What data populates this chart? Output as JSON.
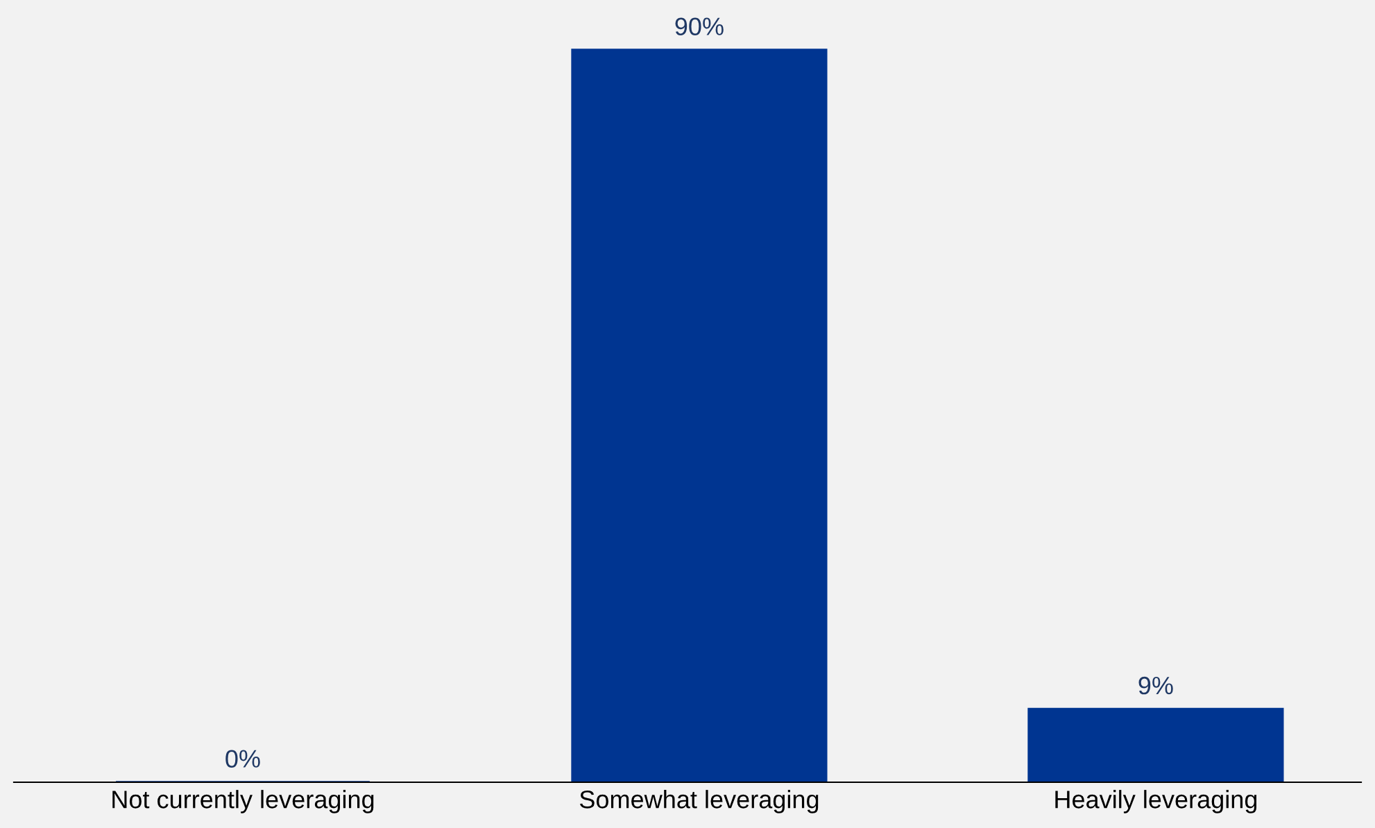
{
  "chart_data": {
    "type": "bar",
    "categories": [
      "Not currently leveraging",
      "Somewhat leveraging",
      "Heavily leveraging"
    ],
    "values": [
      0,
      90,
      9
    ],
    "value_labels": [
      "0%",
      "90%",
      "9%"
    ],
    "color": "#003591",
    "grid": false,
    "legend": false
  }
}
